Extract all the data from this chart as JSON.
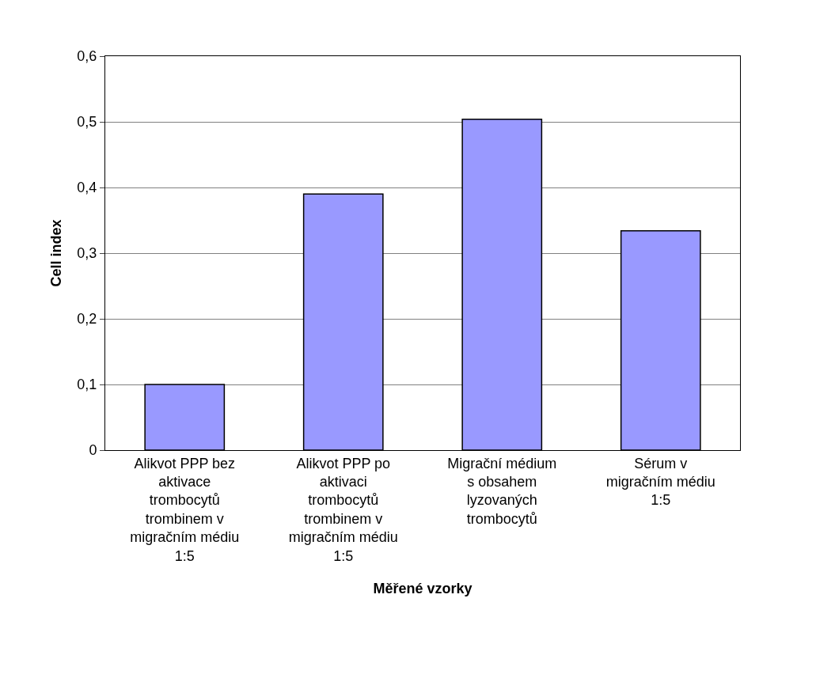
{
  "chart_data": {
    "type": "bar",
    "xlabel": "Měřené vzorky",
    "ylabel": "Cell index",
    "categories": [
      "Alikvot PPP bez aktivace trombocytů trombinem v migračním médiu 1:5",
      "Alikvot PPP po aktivaci trombocytů trombinem v migračním médiu 1:5",
      "Migrační médium s obsahem lyzovaných trombocytů",
      "Sérum v migračním médiu 1:5"
    ],
    "values": [
      0.1,
      0.39,
      0.504,
      0.334
    ],
    "color": "#9999ff",
    "ylim": [
      0,
      0.6
    ],
    "yticks": [
      0,
      {
        "value": 0.1,
        "label": "0,1"
      },
      {
        "value": 0.2,
        "label": "0,2"
      },
      {
        "value": 0.3,
        "label": "0,3"
      },
      {
        "value": 0.4,
        "label": "0,4"
      },
      {
        "value": 0.5,
        "label": "0,5"
      },
      {
        "value": 0.6,
        "label": "0,6"
      }
    ],
    "grid": "y",
    "legend": false
  }
}
